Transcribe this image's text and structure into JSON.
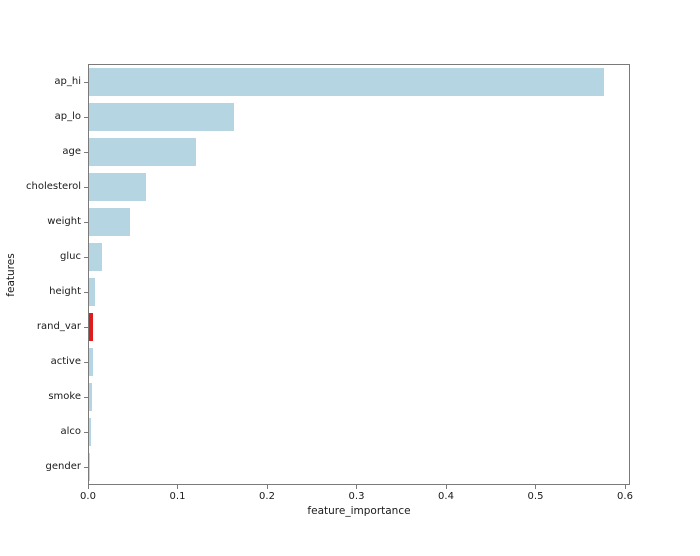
{
  "chart_data": {
    "type": "bar",
    "orientation": "horizontal",
    "title": "",
    "xlabel": "feature_importance",
    "ylabel": "features",
    "categories": [
      "ap_hi",
      "ap_lo",
      "age",
      "cholesterol",
      "weight",
      "gluc",
      "height",
      "rand_var",
      "active",
      "smoke",
      "alco",
      "gender"
    ],
    "values": [
      0.575,
      0.162,
      0.12,
      0.064,
      0.046,
      0.015,
      0.007,
      0.005,
      0.005,
      0.003,
      0.002,
      0.001
    ],
    "highlight_category": "rand_var",
    "x_ticks": [
      0.0,
      0.1,
      0.2,
      0.3,
      0.4,
      0.5,
      0.6
    ],
    "x_tick_labels": [
      "0.0",
      "0.1",
      "0.2",
      "0.3",
      "0.4",
      "0.5",
      "0.6"
    ],
    "xlim": [
      0,
      0.6056
    ],
    "grid": false,
    "legend": null,
    "colors": {
      "bar": "#b6d5e2",
      "highlight_bar": "#e01b1b",
      "spine": "#7a7a7a",
      "text": "#1a1a1a",
      "background": "#ffffff"
    }
  }
}
